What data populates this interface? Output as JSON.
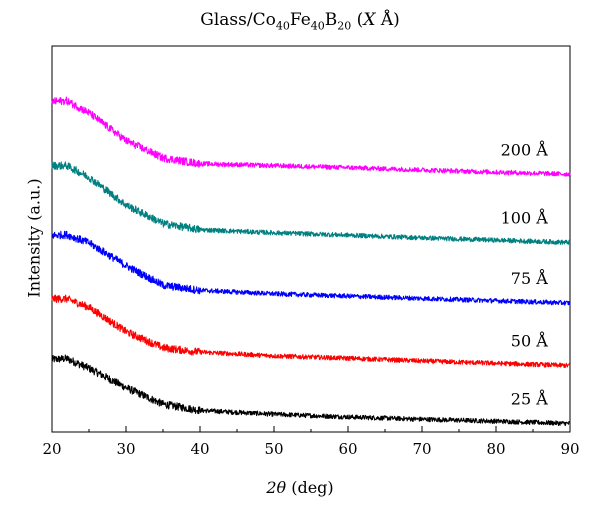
{
  "chart_data": {
    "type": "line",
    "title": {
      "prefix": "Glass/Co",
      "co_sub": "40",
      "fe": "Fe",
      "fe_sub": "40",
      "b": "B",
      "b_sub": "20",
      "open": " (",
      "var": "X",
      "unit": " Å)"
    },
    "xlabel": {
      "var": "2θ",
      "rest": " (deg)"
    },
    "ylabel": "Intensity (a.u.)",
    "xlim": [
      20,
      90
    ],
    "ylim": [
      0,
      1
    ],
    "xticks": [
      "20",
      "30",
      "40",
      "50",
      "60",
      "70",
      "80",
      "90"
    ],
    "grid": false,
    "series": [
      {
        "name": "25 Å",
        "color": "#000000",
        "x": [
          20,
          22,
          25,
          30,
          35,
          40,
          50,
          60,
          70,
          80,
          90
        ],
        "y": [
          0.188,
          0.19,
          0.165,
          0.115,
          0.072,
          0.056,
          0.046,
          0.039,
          0.033,
          0.028,
          0.022
        ]
      },
      {
        "name": "50 Å",
        "color": "#ff0000",
        "x": [
          20,
          22,
          25,
          30,
          35,
          40,
          50,
          60,
          70,
          80,
          90
        ],
        "y": [
          0.345,
          0.345,
          0.323,
          0.26,
          0.218,
          0.207,
          0.197,
          0.191,
          0.184,
          0.178,
          0.172
        ]
      },
      {
        "name": "75 Å",
        "color": "#0000ff",
        "x": [
          20,
          22,
          25,
          30,
          35,
          40,
          50,
          60,
          70,
          80,
          90
        ],
        "y": [
          0.509,
          0.511,
          0.49,
          0.431,
          0.38,
          0.367,
          0.358,
          0.352,
          0.346,
          0.34,
          0.334
        ]
      },
      {
        "name": "100 Å",
        "color": "#008080",
        "x": [
          20,
          22,
          25,
          30,
          35,
          40,
          50,
          60,
          70,
          80,
          90
        ],
        "y": [
          0.69,
          0.69,
          0.66,
          0.588,
          0.54,
          0.524,
          0.516,
          0.51,
          0.503,
          0.497,
          0.491
        ]
      },
      {
        "name": "200 Å",
        "color": "#ff00ff",
        "x": [
          20,
          22,
          25,
          30,
          35,
          40,
          50,
          60,
          70,
          80,
          90
        ],
        "y": [
          0.856,
          0.858,
          0.827,
          0.755,
          0.71,
          0.695,
          0.69,
          0.685,
          0.679,
          0.673,
          0.668
        ]
      }
    ]
  }
}
